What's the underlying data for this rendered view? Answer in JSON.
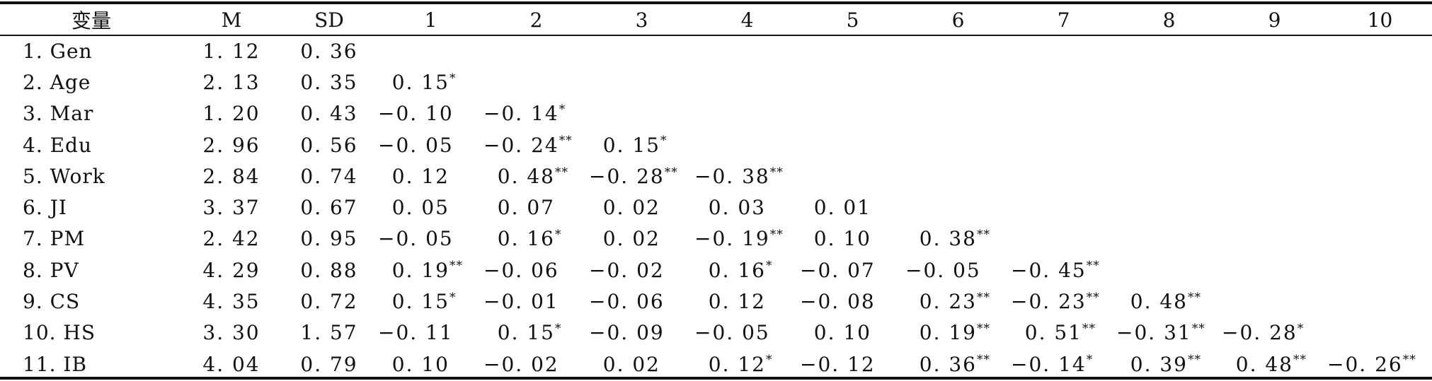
{
  "table": {
    "headers": [
      "变量",
      "M",
      "SD",
      "1",
      "2",
      "3",
      "4",
      "5",
      "6",
      "7",
      "8",
      "9",
      "10"
    ],
    "rows": [
      {
        "label": "1. Gen",
        "m": "1. 12",
        "sd": "0. 36",
        "cells": [
          {
            "v": "",
            "s": ""
          },
          {
            "v": "",
            "s": ""
          },
          {
            "v": "",
            "s": ""
          },
          {
            "v": "",
            "s": ""
          },
          {
            "v": "",
            "s": ""
          },
          {
            "v": "",
            "s": ""
          },
          {
            "v": "",
            "s": ""
          },
          {
            "v": "",
            "s": ""
          },
          {
            "v": "",
            "s": ""
          },
          {
            "v": "",
            "s": ""
          }
        ]
      },
      {
        "label": "2. Age",
        "m": "2. 13",
        "sd": "0. 35",
        "cells": [
          {
            "v": "0. 15",
            "s": "*"
          },
          {
            "v": "",
            "s": ""
          },
          {
            "v": "",
            "s": ""
          },
          {
            "v": "",
            "s": ""
          },
          {
            "v": "",
            "s": ""
          },
          {
            "v": "",
            "s": ""
          },
          {
            "v": "",
            "s": ""
          },
          {
            "v": "",
            "s": ""
          },
          {
            "v": "",
            "s": ""
          },
          {
            "v": "",
            "s": ""
          }
        ]
      },
      {
        "label": "3. Mar",
        "m": "1. 20",
        "sd": "0. 43",
        "cells": [
          {
            "v": "−0. 10",
            "s": ""
          },
          {
            "v": "−0. 14",
            "s": "*"
          },
          {
            "v": "",
            "s": ""
          },
          {
            "v": "",
            "s": ""
          },
          {
            "v": "",
            "s": ""
          },
          {
            "v": "",
            "s": ""
          },
          {
            "v": "",
            "s": ""
          },
          {
            "v": "",
            "s": ""
          },
          {
            "v": "",
            "s": ""
          },
          {
            "v": "",
            "s": ""
          }
        ]
      },
      {
        "label": "4. Edu",
        "m": "2. 96",
        "sd": "0. 56",
        "cells": [
          {
            "v": "−0. 05",
            "s": ""
          },
          {
            "v": "−0. 24",
            "s": "**"
          },
          {
            "v": "0. 15",
            "s": "*"
          },
          {
            "v": "",
            "s": ""
          },
          {
            "v": "",
            "s": ""
          },
          {
            "v": "",
            "s": ""
          },
          {
            "v": "",
            "s": ""
          },
          {
            "v": "",
            "s": ""
          },
          {
            "v": "",
            "s": ""
          },
          {
            "v": "",
            "s": ""
          }
        ]
      },
      {
        "label": "5. Work",
        "m": "2. 84",
        "sd": "0. 74",
        "cells": [
          {
            "v": "0. 12",
            "s": ""
          },
          {
            "v": "0. 48",
            "s": "**"
          },
          {
            "v": "−0. 28",
            "s": "**"
          },
          {
            "v": "−0. 38",
            "s": "**"
          },
          {
            "v": "",
            "s": ""
          },
          {
            "v": "",
            "s": ""
          },
          {
            "v": "",
            "s": ""
          },
          {
            "v": "",
            "s": ""
          },
          {
            "v": "",
            "s": ""
          },
          {
            "v": "",
            "s": ""
          }
        ]
      },
      {
        "label": "6. JI",
        "m": "3. 37",
        "sd": "0. 67",
        "cells": [
          {
            "v": "0. 05",
            "s": ""
          },
          {
            "v": "0. 07",
            "s": ""
          },
          {
            "v": "0. 02",
            "s": ""
          },
          {
            "v": "0. 03",
            "s": ""
          },
          {
            "v": "0. 01",
            "s": ""
          },
          {
            "v": "",
            "s": ""
          },
          {
            "v": "",
            "s": ""
          },
          {
            "v": "",
            "s": ""
          },
          {
            "v": "",
            "s": ""
          },
          {
            "v": "",
            "s": ""
          }
        ]
      },
      {
        "label": "7. PM",
        "m": "2. 42",
        "sd": "0. 95",
        "cells": [
          {
            "v": "−0. 05",
            "s": ""
          },
          {
            "v": "0. 16",
            "s": "*"
          },
          {
            "v": "0. 02",
            "s": ""
          },
          {
            "v": "−0. 19",
            "s": "**"
          },
          {
            "v": "0. 10",
            "s": ""
          },
          {
            "v": "0. 38",
            "s": "**"
          },
          {
            "v": "",
            "s": ""
          },
          {
            "v": "",
            "s": ""
          },
          {
            "v": "",
            "s": ""
          },
          {
            "v": "",
            "s": ""
          }
        ]
      },
      {
        "label": "8. PV",
        "m": "4. 29",
        "sd": "0. 88",
        "cells": [
          {
            "v": "0. 19",
            "s": "**"
          },
          {
            "v": "−0. 06",
            "s": ""
          },
          {
            "v": "−0. 02",
            "s": ""
          },
          {
            "v": "0. 16",
            "s": "*"
          },
          {
            "v": "−0. 07",
            "s": ""
          },
          {
            "v": "−0. 05",
            "s": ""
          },
          {
            "v": "−0. 45",
            "s": "**"
          },
          {
            "v": "",
            "s": ""
          },
          {
            "v": "",
            "s": ""
          },
          {
            "v": "",
            "s": ""
          }
        ]
      },
      {
        "label": "9. CS",
        "m": "4. 35",
        "sd": "0. 72",
        "cells": [
          {
            "v": "0. 15",
            "s": "*"
          },
          {
            "v": "−0. 01",
            "s": ""
          },
          {
            "v": "−0. 06",
            "s": ""
          },
          {
            "v": "0. 12",
            "s": ""
          },
          {
            "v": "−0. 08",
            "s": ""
          },
          {
            "v": "0. 23",
            "s": "**"
          },
          {
            "v": "−0. 23",
            "s": "**"
          },
          {
            "v": "0. 48",
            "s": "**"
          },
          {
            "v": "",
            "s": ""
          },
          {
            "v": "",
            "s": ""
          }
        ]
      },
      {
        "label": "10. HS",
        "m": "3. 30",
        "sd": "1. 57",
        "cells": [
          {
            "v": "−0. 11",
            "s": ""
          },
          {
            "v": "0. 15",
            "s": "*"
          },
          {
            "v": "−0. 09",
            "s": ""
          },
          {
            "v": "−0. 05",
            "s": ""
          },
          {
            "v": "0. 10",
            "s": ""
          },
          {
            "v": "0. 19",
            "s": "**"
          },
          {
            "v": "0. 51",
            "s": "**"
          },
          {
            "v": "−0. 31",
            "s": "**"
          },
          {
            "v": "−0. 28",
            "s": "*"
          },
          {
            "v": "",
            "s": ""
          }
        ]
      },
      {
        "label": "11. IB",
        "m": "4. 04",
        "sd": "0. 79",
        "cells": [
          {
            "v": "0. 10",
            "s": ""
          },
          {
            "v": "−0. 02",
            "s": ""
          },
          {
            "v": "0. 02",
            "s": ""
          },
          {
            "v": "0. 12",
            "s": "*"
          },
          {
            "v": "−0. 12",
            "s": ""
          },
          {
            "v": "0. 36",
            "s": "**"
          },
          {
            "v": "−0. 14",
            "s": "*"
          },
          {
            "v": "0. 39",
            "s": "**"
          },
          {
            "v": "0. 48",
            "s": "**"
          },
          {
            "v": "−0. 26",
            "s": "**"
          }
        ]
      }
    ]
  }
}
